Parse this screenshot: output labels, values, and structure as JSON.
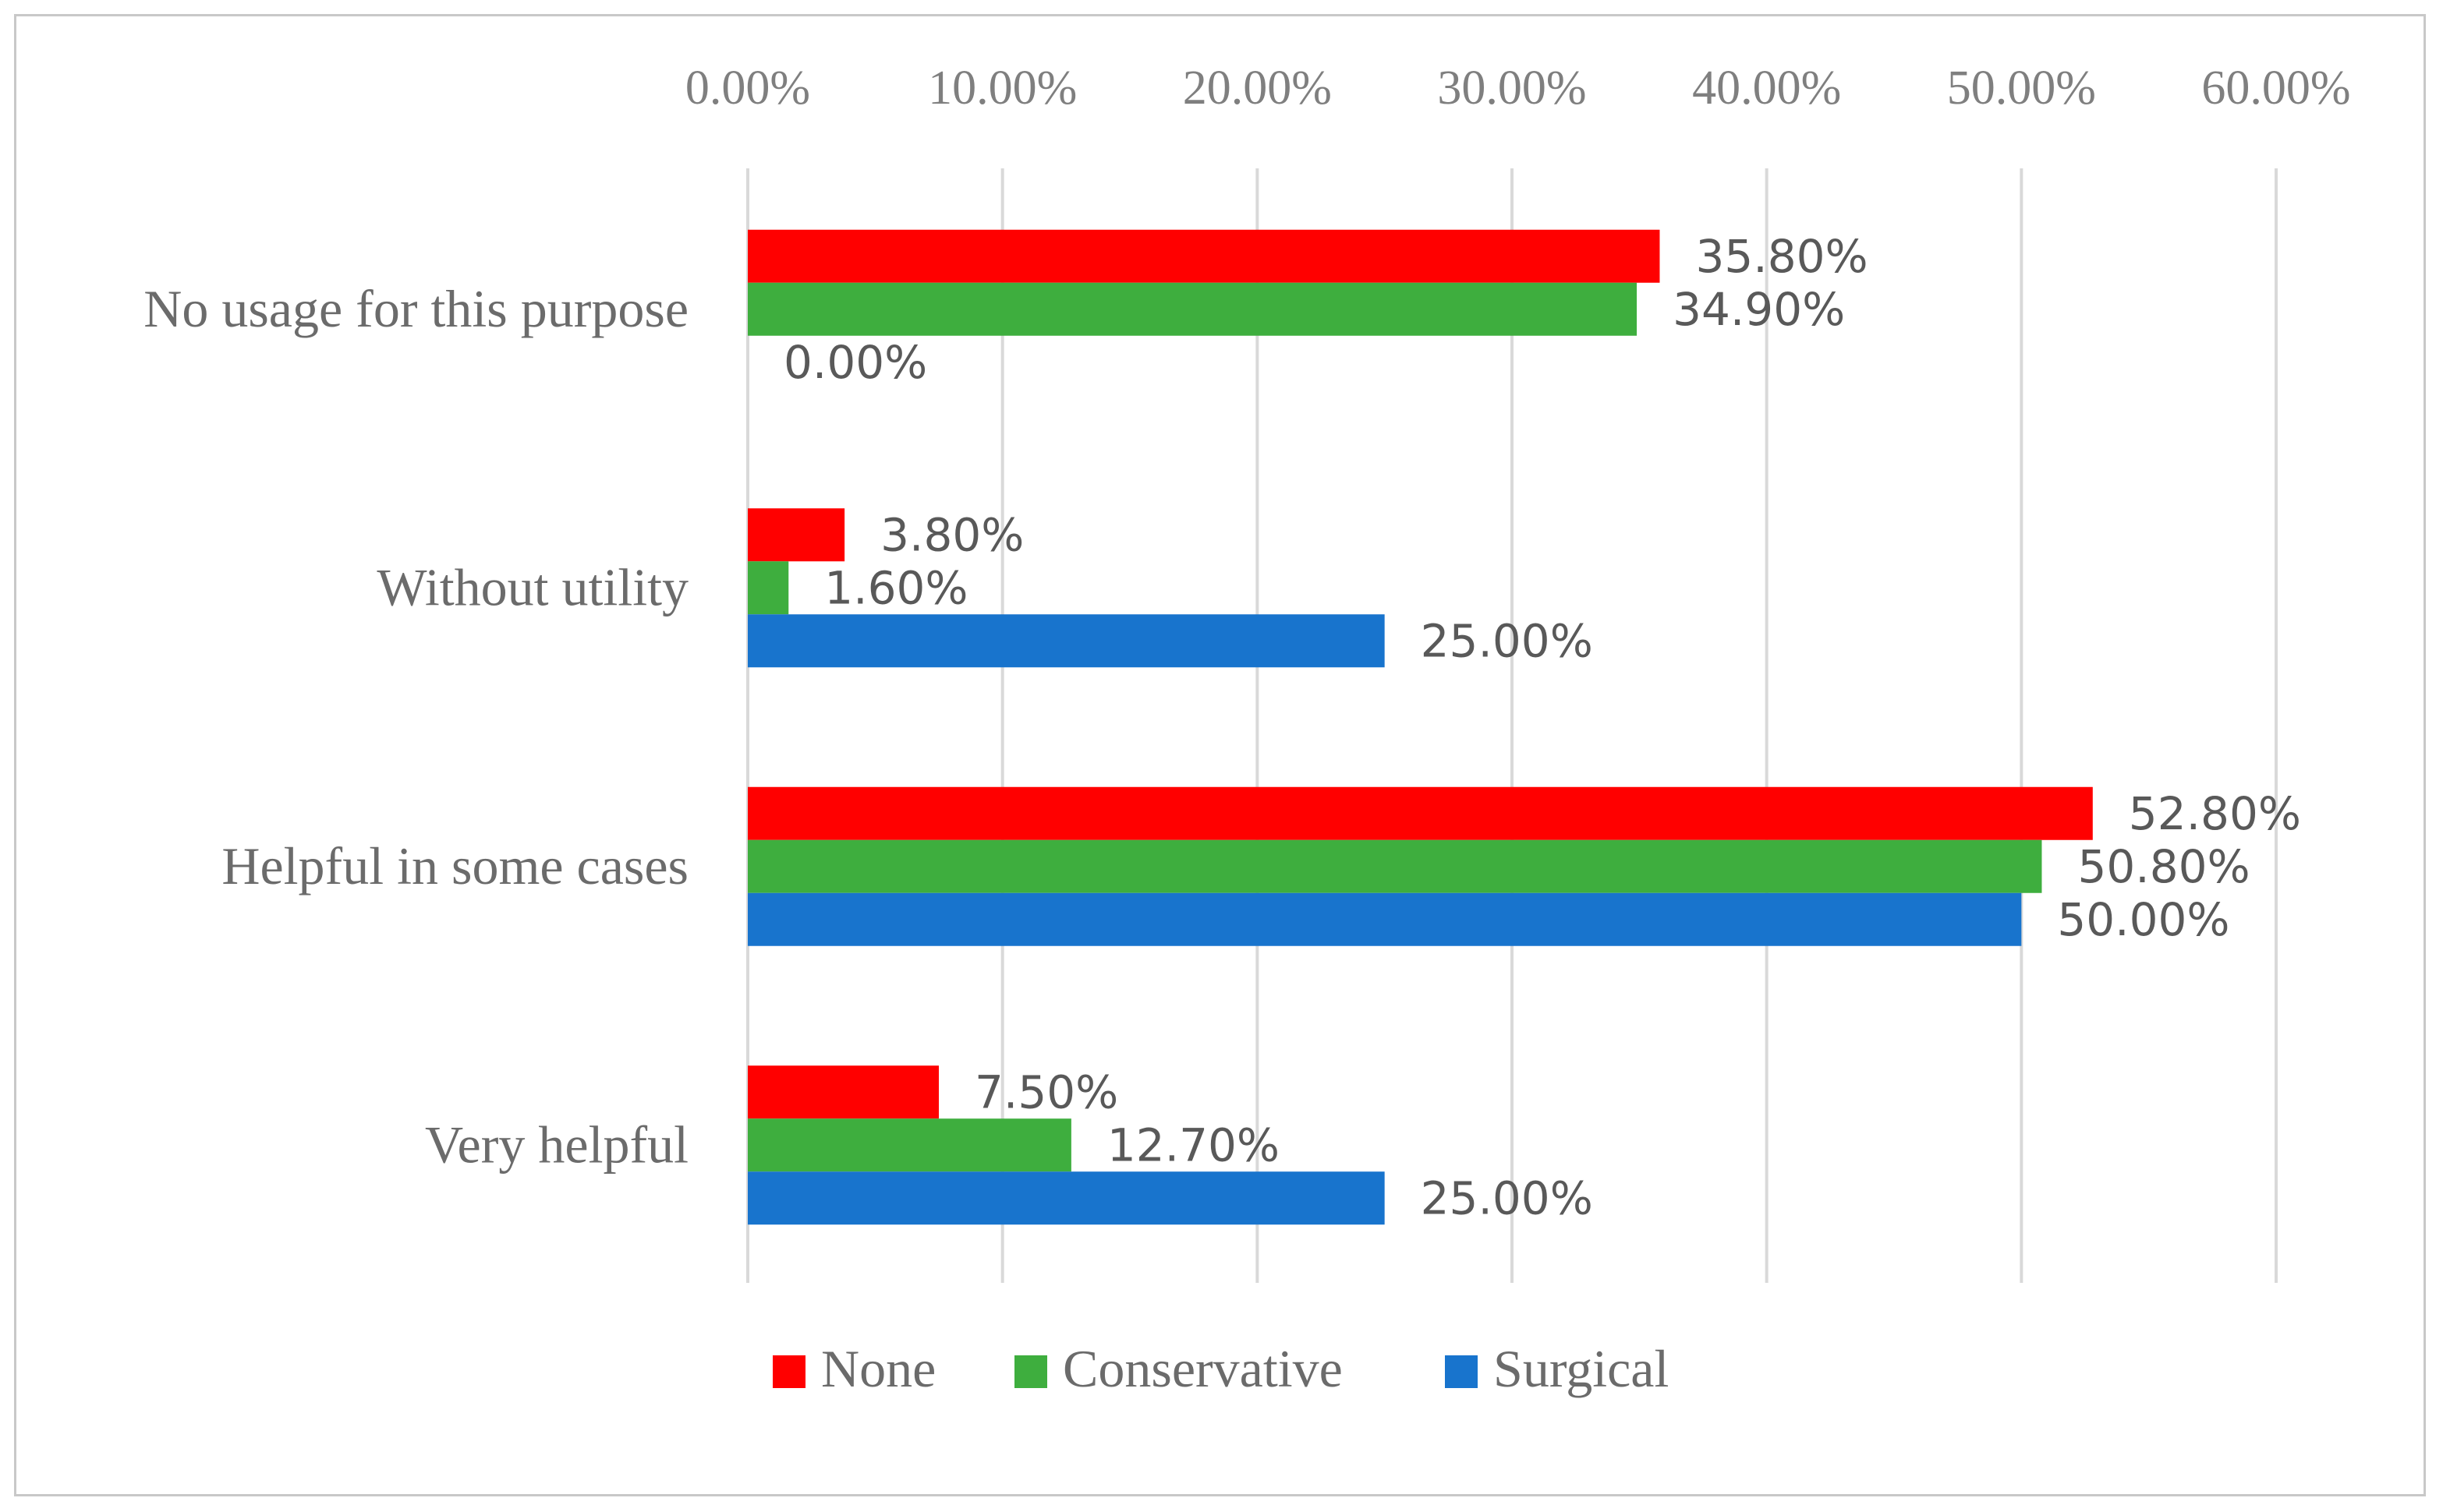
{
  "chart_data": {
    "type": "bar",
    "orientation": "horizontal",
    "title": "",
    "xlabel": "",
    "ylabel": "",
    "xlim": [
      0,
      60
    ],
    "x_ticks": [
      0,
      10,
      20,
      30,
      40,
      50,
      60
    ],
    "x_tick_labels": [
      "0.00%",
      "10.00%",
      "20.00%",
      "30.00%",
      "40.00%",
      "50.00%",
      "60.00%"
    ],
    "x_axis_position": "top",
    "grid": true,
    "categories": [
      "No usage for this purpose",
      "Without utility",
      "Helpful in some cases",
      "Very helpful"
    ],
    "series": [
      {
        "name": "None",
        "color": "#ff0000",
        "values": [
          35.8,
          3.8,
          52.8,
          7.5
        ],
        "labels": [
          "35.80%",
          "3.80%",
          "52.80%",
          "7.50%"
        ]
      },
      {
        "name": "Conservative",
        "color": "#3eae3e",
        "values": [
          34.9,
          1.6,
          50.8,
          12.7
        ],
        "labels": [
          "34.90%",
          "1.60%",
          "50.80%",
          "12.70%"
        ]
      },
      {
        "name": "Surgical",
        "color": "#1874cd",
        "values": [
          0.0,
          25.0,
          50.0,
          25.0
        ],
        "labels": [
          "0.00%",
          "25.00%",
          "50.00%",
          "25.00%"
        ]
      }
    ],
    "legend_position": "bottom"
  }
}
